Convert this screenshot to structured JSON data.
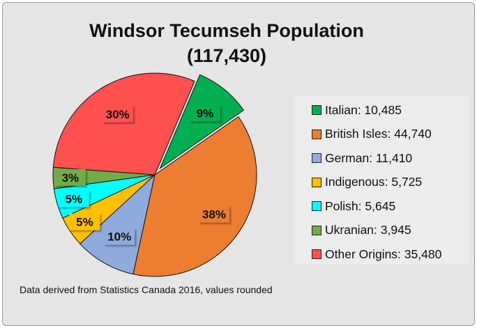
{
  "chart_data": {
    "type": "pie",
    "title": "Windsor Tecumseh Population",
    "subtitle": "(117,430)",
    "categories": [
      "Italian",
      "British Isles",
      "German",
      "Indigenous",
      "Polish",
      "Ukranian",
      "Other Origins"
    ],
    "values": [
      10485,
      44740,
      11410,
      5725,
      5645,
      3945,
      35480
    ],
    "data_labels": [
      "9%",
      "38%",
      "10%",
      "5%",
      "5%",
      "3%",
      "30%"
    ],
    "legend_labels": [
      "Italian: 10,485",
      "British Isles: 44,740",
      "German: 11,410",
      "Indigenous: 5,725",
      "Polish: 5,645",
      "Ukranian: 3,945",
      "Other Origins: 35,480"
    ],
    "colors": [
      "#00b050",
      "#ed7d31",
      "#8faadc",
      "#ffc000",
      "#00ffff",
      "#70ad47",
      "#ff5050"
    ],
    "exploded": [
      "Italian"
    ],
    "legend_position": "right"
  },
  "note": "Data derived from Statistics Canada 2016, values rounded"
}
